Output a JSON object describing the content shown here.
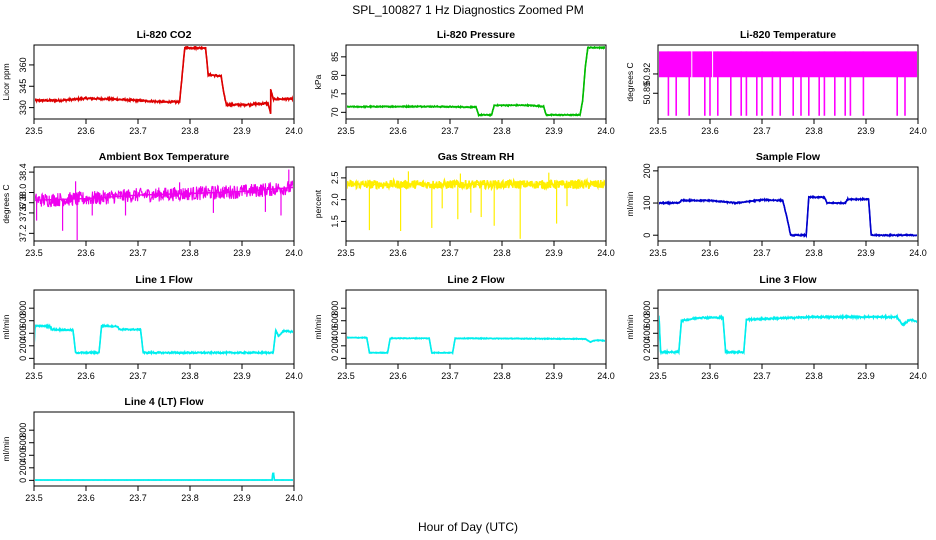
{
  "figure": {
    "title": "SPL_100827  1 Hz Diagnostics Zoomed PM",
    "xlabel": "Hour of Day (UTC)"
  },
  "chart_data": [
    {
      "type": "line",
      "title": "Li-820 CO2",
      "ylabel": "Licor ppm",
      "color": "#dd0000",
      "xlim": [
        23.5,
        24.0
      ],
      "ylim": [
        322,
        374
      ],
      "xticks": [
        "23.5",
        "23.6",
        "23.7",
        "23.8",
        "23.9",
        "24.0"
      ],
      "yticks": [
        {
          "value": 330,
          "label": "330"
        },
        {
          "value": 345,
          "label": "345"
        },
        {
          "value": 360,
          "label": "360"
        }
      ],
      "noise": 0.7,
      "x": [
        23.5,
        23.55,
        23.6,
        23.65,
        23.7,
        23.75,
        23.78,
        23.79,
        23.8,
        23.83,
        23.835,
        23.84,
        23.86,
        23.865,
        23.87,
        23.9,
        23.95,
        23.955,
        23.955,
        23.96,
        23.965,
        24.0
      ],
      "values": [
        335,
        335,
        336.5,
        336,
        335,
        334,
        334,
        372,
        372,
        372,
        353,
        353,
        352,
        340,
        332,
        332,
        333,
        326,
        343,
        336,
        336,
        336
      ]
    },
    {
      "type": "line",
      "title": "Li-820 Pressure",
      "ylabel": "kPa",
      "color": "#00bb00",
      "xlim": [
        23.5,
        24.0
      ],
      "ylim": [
        68.2,
        88.2
      ],
      "xticks": [
        "23.5",
        "23.6",
        "23.7",
        "23.8",
        "23.9",
        "24.0"
      ],
      "yticks": [
        {
          "value": 70,
          "label": "70"
        },
        {
          "value": 75,
          "label": "75"
        },
        {
          "value": 80,
          "label": "80"
        },
        {
          "value": 85,
          "label": "85"
        }
      ],
      "noise": 0.15,
      "x": [
        23.5,
        23.65,
        23.75,
        23.755,
        23.78,
        23.785,
        23.85,
        23.88,
        23.885,
        23.95,
        23.955,
        23.96,
        23.965,
        24.0
      ],
      "values": [
        71.5,
        71.6,
        71.4,
        69.3,
        69.3,
        71.9,
        71.9,
        71.6,
        69.3,
        69.3,
        73,
        82,
        87.5,
        87.5
      ]
    },
    {
      "type": "line",
      "title": "Li-820 Temperature",
      "ylabel": "degrees C",
      "color": "#ff00ff",
      "xlim": [
        23.5,
        24.0
      ],
      "ylim": [
        50.85,
        50.965
      ],
      "xticks": [
        "23.5",
        "23.6",
        "23.7",
        "23.8",
        "23.9",
        "24.0"
      ],
      "yticks": [
        {
          "value": 50.89,
          "label": "50.89"
        },
        {
          "value": 50.92,
          "label": "50.92"
        }
      ],
      "high": 50.955,
      "low": 50.915,
      "floor": 50.855,
      "dips": [
        23.52,
        23.535,
        23.56,
        23.59,
        23.6,
        23.615,
        23.64,
        23.66,
        23.67,
        23.69,
        23.7,
        23.72,
        23.735,
        23.76,
        23.775,
        23.79,
        23.81,
        23.82,
        23.84,
        23.86,
        23.87,
        23.895,
        23.96,
        23.975
      ],
      "gaps": [
        23.565,
        23.605
      ]
    },
    {
      "type": "line",
      "title": "Ambient Box Temperature",
      "ylabel": "degrees C",
      "color": "#ee00ee",
      "xlim": [
        23.5,
        24.0
      ],
      "ylim": [
        37.05,
        38.5
      ],
      "xticks": [
        "23.5",
        "23.6",
        "23.7",
        "23.8",
        "23.9",
        "24.0"
      ],
      "yticks": [
        {
          "value": 37.2,
          "label": "37.2"
        },
        {
          "value": 37.6,
          "label": "37.6"
        },
        {
          "value": 37.8,
          "label": "37.8"
        },
        {
          "value": 38.0,
          "label": "38.0"
        },
        {
          "value": 38.4,
          "label": "38.4"
        }
      ],
      "x": [
        23.5,
        23.6,
        23.7,
        23.8,
        23.9,
        24.0
      ],
      "values": [
        37.85,
        37.88,
        37.95,
        37.98,
        38.02,
        38.1
      ],
      "noise": 0.14,
      "spikes_down": [
        [
          23.505,
          37.45
        ],
        [
          23.555,
          37.25
        ],
        [
          23.583,
          37.0
        ],
        [
          23.612,
          37.55
        ],
        [
          23.676,
          37.55
        ],
        [
          23.845,
          37.6
        ],
        [
          23.945,
          37.62
        ],
        [
          23.975,
          37.55
        ]
      ],
      "spikes_up": [
        [
          23.58,
          38.22
        ],
        [
          23.78,
          38.2
        ],
        [
          23.99,
          38.45
        ]
      ]
    },
    {
      "type": "line",
      "title": "Gas Stream RH",
      "ylabel": "percent",
      "color": "#ffee00",
      "xlim": [
        23.5,
        24.0
      ],
      "ylim": [
        1.05,
        2.75
      ],
      "xticks": [
        "23.5",
        "23.6",
        "23.7",
        "23.8",
        "23.9",
        "24.0"
      ],
      "yticks": [
        {
          "value": 1.5,
          "label": "1.5"
        },
        {
          "value": 2.0,
          "label": "2.0"
        },
        {
          "value": 2.5,
          "label": "2.5"
        }
      ],
      "x": [
        23.5,
        24.0
      ],
      "values": [
        2.35,
        2.35
      ],
      "noise": 0.1,
      "spikes_down": [
        [
          23.545,
          1.3
        ],
        [
          23.605,
          1.28
        ],
        [
          23.665,
          1.35
        ],
        [
          23.685,
          1.8
        ],
        [
          23.715,
          1.55
        ],
        [
          23.74,
          1.7
        ],
        [
          23.76,
          1.6
        ],
        [
          23.785,
          1.4
        ],
        [
          23.835,
          1.1
        ],
        [
          23.905,
          1.45
        ],
        [
          23.925,
          1.85
        ]
      ],
      "spikes_up": [
        [
          23.62,
          2.65
        ],
        [
          23.72,
          2.6
        ],
        [
          23.89,
          2.62
        ]
      ]
    },
    {
      "type": "line",
      "title": "Sample Flow",
      "ylabel": "ml/min",
      "color": "#0000cc",
      "xlim": [
        23.5,
        24.0
      ],
      "ylim": [
        -18,
        212
      ],
      "xticks": [
        "23.5",
        "23.6",
        "23.7",
        "23.8",
        "23.9",
        "24.0"
      ],
      "yticks": [
        {
          "value": 0,
          "label": "0"
        },
        {
          "value": 100,
          "label": "100"
        },
        {
          "value": 200,
          "label": "200"
        }
      ],
      "noise": 2,
      "x": [
        23.5,
        23.54,
        23.545,
        23.6,
        23.65,
        23.7,
        23.74,
        23.75,
        23.755,
        23.785,
        23.79,
        23.82,
        23.825,
        23.86,
        23.865,
        23.905,
        23.91,
        24.0
      ],
      "values": [
        100,
        100,
        108,
        108,
        100,
        110,
        108,
        40,
        0,
        0,
        118,
        118,
        100,
        100,
        112,
        112,
        0,
        0
      ]
    },
    {
      "type": "line",
      "title": "Line 1 Flow",
      "ylabel": "ml/min",
      "color": "#00eeee",
      "xlim": [
        23.5,
        24.0
      ],
      "ylim": [
        -90,
        1090
      ],
      "xticks": [
        "23.5",
        "23.6",
        "23.7",
        "23.8",
        "23.9",
        "24.0"
      ],
      "yticks": [
        {
          "value": 0,
          "label": "0"
        },
        {
          "value": 200,
          "label": "200"
        },
        {
          "value": 400,
          "label": "400"
        },
        {
          "value": 600,
          "label": "600"
        },
        {
          "value": 800,
          "label": "800"
        }
      ],
      "noise": 12,
      "x": [
        23.5,
        23.502,
        23.53,
        23.535,
        23.575,
        23.58,
        23.625,
        23.63,
        23.66,
        23.665,
        23.705,
        23.71,
        23.96,
        23.965,
        23.97,
        23.98,
        24.0
      ],
      "values": [
        150,
        520,
        510,
        460,
        450,
        90,
        90,
        520,
        510,
        460,
        460,
        90,
        90,
        450,
        350,
        440,
        420
      ]
    },
    {
      "type": "line",
      "title": "Line 2 Flow",
      "ylabel": "ml/min",
      "color": "#00eeee",
      "xlim": [
        23.5,
        24.0
      ],
      "ylim": [
        -90,
        1090
      ],
      "xticks": [
        "23.5",
        "23.6",
        "23.7",
        "23.8",
        "23.9",
        "24.0"
      ],
      "yticks": [
        {
          "value": 0,
          "label": "0"
        },
        {
          "value": 200,
          "label": "200"
        },
        {
          "value": 400,
          "label": "400"
        },
        {
          "value": 600,
          "label": "600"
        },
        {
          "value": 800,
          "label": "800"
        }
      ],
      "noise": 6,
      "x": [
        23.5,
        23.54,
        23.545,
        23.58,
        23.585,
        23.66,
        23.665,
        23.705,
        23.71,
        23.96,
        23.97,
        23.98,
        24.0
      ],
      "values": [
        330,
        330,
        90,
        90,
        320,
        320,
        90,
        90,
        320,
        310,
        260,
        290,
        280
      ]
    },
    {
      "type": "line",
      "title": "Line 3 Flow",
      "ylabel": "ml/min",
      "color": "#00eeee",
      "xlim": [
        23.5,
        24.0
      ],
      "ylim": [
        -90,
        1090
      ],
      "xticks": [
        "23.5",
        "23.6",
        "23.7",
        "23.8",
        "23.9",
        "24.0"
      ],
      "yticks": [
        {
          "value": 0,
          "label": "0"
        },
        {
          "value": 200,
          "label": "200"
        },
        {
          "value": 400,
          "label": "400"
        },
        {
          "value": 600,
          "label": "600"
        },
        {
          "value": 800,
          "label": "800"
        }
      ],
      "noise": 14,
      "x": [
        23.5,
        23.502,
        23.505,
        23.54,
        23.545,
        23.58,
        23.625,
        23.63,
        23.665,
        23.67,
        23.8,
        23.96,
        23.97,
        23.985,
        24.0
      ],
      "values": [
        100,
        680,
        100,
        100,
        600,
        650,
        650,
        100,
        100,
        620,
        660,
        660,
        530,
        620,
        580
      ]
    },
    {
      "type": "line",
      "title": "Line 4 (LT) Flow",
      "ylabel": "ml/min",
      "color": "#00eeee",
      "xlim": [
        23.5,
        24.0
      ],
      "ylim": [
        -90,
        1090
      ],
      "xticks": [
        "23.5",
        "23.6",
        "23.7",
        "23.8",
        "23.9",
        "24.0"
      ],
      "yticks": [
        {
          "value": 0,
          "label": "0"
        },
        {
          "value": 200,
          "label": "200"
        },
        {
          "value": 400,
          "label": "400"
        },
        {
          "value": 600,
          "label": "600"
        },
        {
          "value": 800,
          "label": "800"
        }
      ],
      "noise": 1,
      "x": [
        23.5,
        23.958,
        23.959,
        23.961,
        23.962,
        24.0
      ],
      "values": [
        5,
        5,
        110,
        110,
        5,
        5
      ]
    }
  ]
}
